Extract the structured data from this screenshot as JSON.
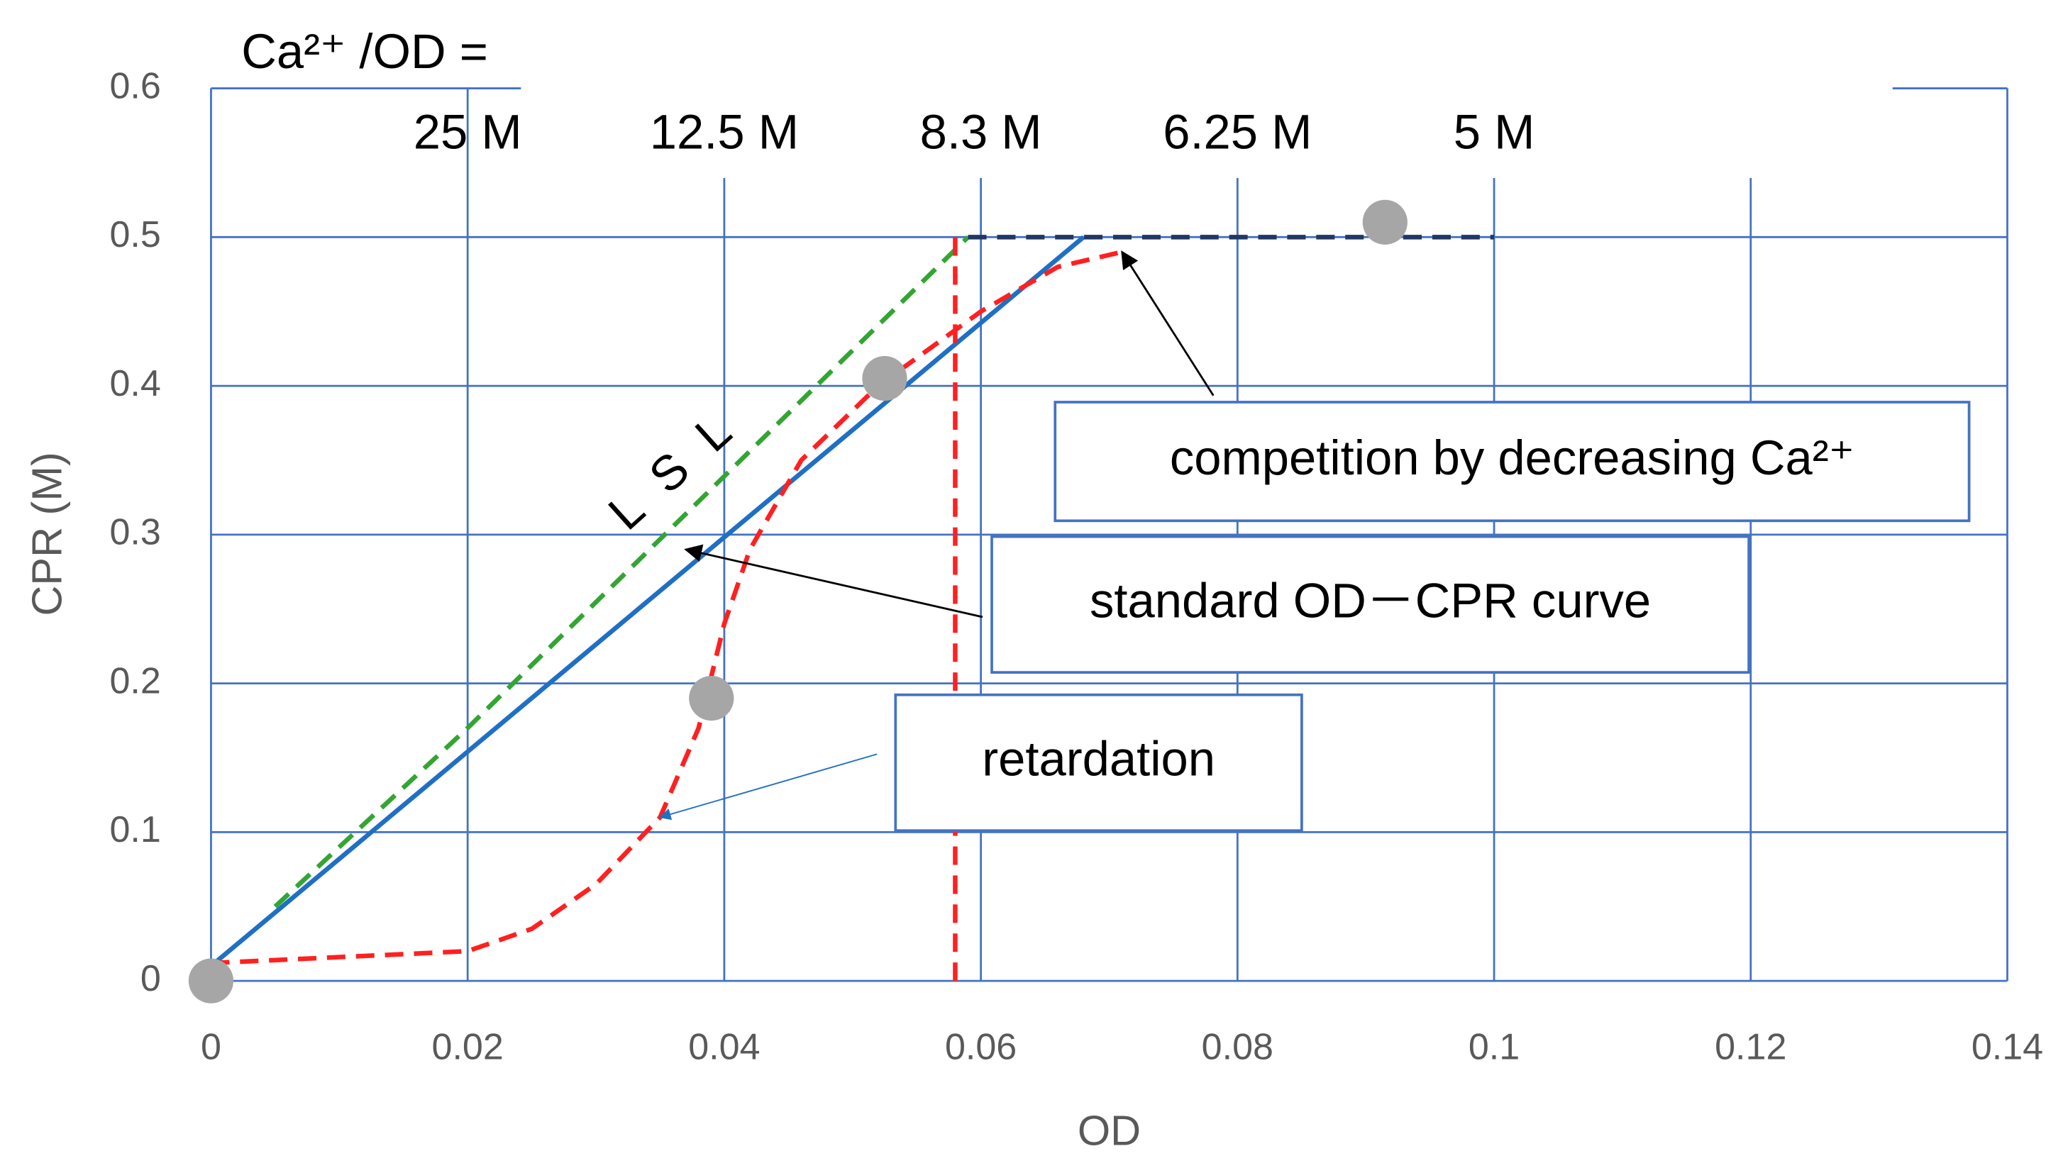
{
  "chart_data": {
    "type": "line",
    "title": "Ca²⁺ /OD =",
    "x_label": "OD",
    "y_label": "CPR (M)",
    "xlim": [
      0,
      0.14
    ],
    "ylim": [
      0,
      0.6
    ],
    "xticks": [
      0,
      0.02,
      0.04,
      0.06,
      0.08,
      0.1,
      0.12,
      0.14
    ],
    "yticks": [
      0,
      0.1,
      0.2,
      0.3,
      0.4,
      0.5,
      0.6
    ],
    "grid": true,
    "grid_color": "#4472c4",
    "top_labels": [
      {
        "x": 0.02,
        "label": "25 M"
      },
      {
        "x": 0.04,
        "label": "12.5 M"
      },
      {
        "x": 0.06,
        "label": "8.3 M"
      },
      {
        "x": 0.08,
        "label": "6.25 M"
      },
      {
        "x": 0.1,
        "label": "5 M"
      }
    ],
    "series": [
      {
        "color": "#1f6fc5",
        "dash": false,
        "x": [
          0,
          0.068
        ],
        "values": [
          0.01,
          0.5
        ]
      },
      {
        "color": "#33a532",
        "dash": true,
        "x": [
          0.005,
          0.02,
          0.059
        ],
        "values": [
          0.05,
          0.17,
          0.5
        ]
      },
      {
        "color": "#1f3864",
        "dash": true,
        "x": [
          0.059,
          0.1
        ],
        "values": [
          0.5,
          0.5
        ]
      },
      {
        "color": "#ff2020",
        "dash": true,
        "x": [
          0,
          0.02,
          0.025,
          0.03,
          0.035,
          0.038,
          0.04,
          0.042,
          0.046,
          0.052,
          0.06,
          0.066,
          0.071
        ],
        "values": [
          0.012,
          0.02,
          0.035,
          0.065,
          0.11,
          0.17,
          0.24,
          0.29,
          0.35,
          0.4,
          0.45,
          0.48,
          0.49
        ]
      },
      {
        "color": "#ff2020",
        "dash": true,
        "x": [
          0.058,
          0.058
        ],
        "values": [
          0,
          0.5
        ]
      },
      {
        "color": "#a6a6a6",
        "mode": "markers",
        "x": [
          0,
          0.039,
          0.0525,
          0.0915
        ],
        "values": [
          0,
          0.19,
          0.405,
          0.51
        ]
      }
    ],
    "slope_label": "L S L",
    "annotations": [
      {
        "text": "competition by decreasing Ca²⁺",
        "xy": [
          0.071,
          0.49
        ]
      },
      {
        "text": "standard OD－CPR curve",
        "xy": [
          0.037,
          0.29
        ]
      },
      {
        "text": "retardation",
        "xy": [
          0.035,
          0.11
        ]
      }
    ]
  }
}
